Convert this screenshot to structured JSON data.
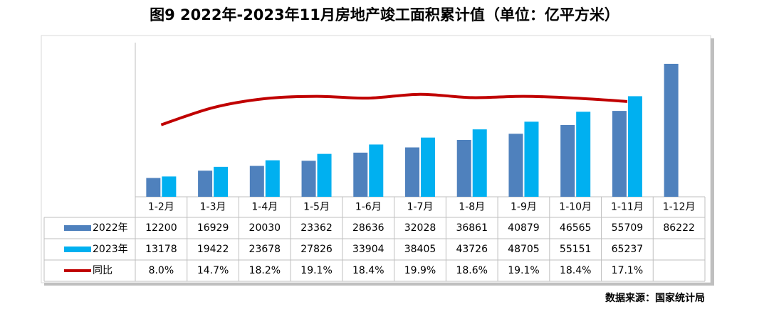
{
  "chart_data": {
    "type": "bar",
    "title": "图9 2022年-2023年11月房地产竣工面积累计值（单位：亿平方米）",
    "source": "数据来源：国家统计局",
    "categories": [
      "1-2月",
      "1-3月",
      "1-4月",
      "1-5月",
      "1-6月",
      "1-7月",
      "1-8月",
      "1-9月",
      "1-10月",
      "1-11月",
      "1-12月"
    ],
    "ylim": [
      0,
      100000
    ],
    "y2lim": [
      -20,
      40
    ],
    "series": [
      {
        "name": "2022年",
        "color": "#4f81bd",
        "values": [
          12200,
          16929,
          20030,
          23362,
          28636,
          32028,
          36861,
          40879,
          46565,
          55709,
          86222
        ]
      },
      {
        "name": "2023年",
        "color": "#00b0f0",
        "values": [
          13178,
          19422,
          23678,
          27826,
          33904,
          38405,
          43726,
          48705,
          55151,
          65237,
          null
        ]
      },
      {
        "name": "同比",
        "color": "#c00000",
        "type": "line",
        "axis": "y2",
        "values": [
          8.0,
          14.7,
          18.2,
          19.1,
          18.4,
          19.9,
          18.6,
          19.1,
          18.4,
          17.1,
          null
        ],
        "value_labels": [
          "8.0%",
          "14.7%",
          "18.2%",
          "19.1%",
          "18.4%",
          "19.9%",
          "18.6%",
          "19.1%",
          "18.4%",
          "17.1%",
          null
        ]
      }
    ]
  }
}
